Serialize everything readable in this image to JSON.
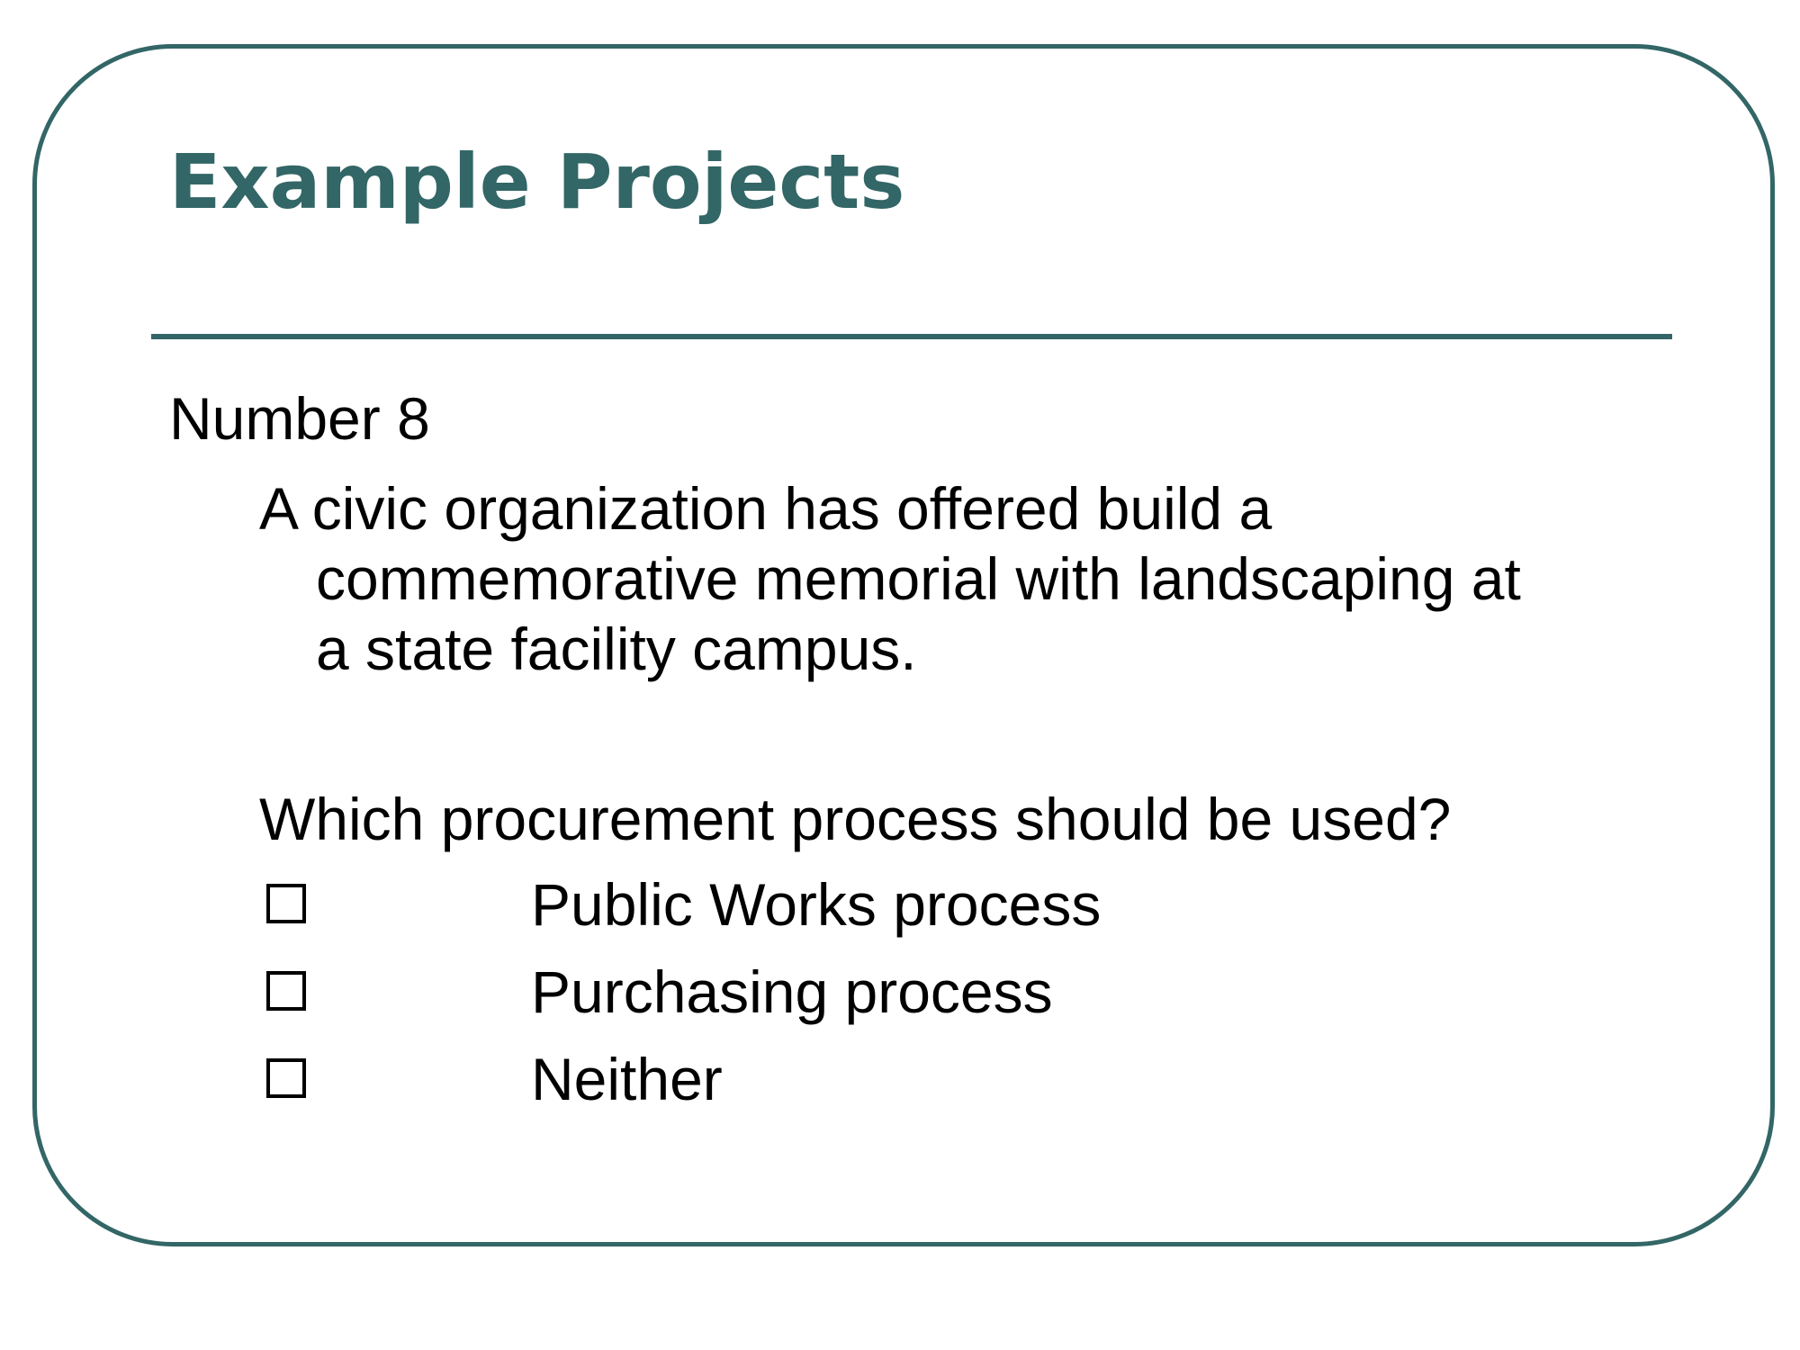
{
  "slide": {
    "title": "Example Projects",
    "heading": "Number 8",
    "paragraph_lines": [
      "A civic organization has offered build a",
      "commemorative memorial with landscaping at",
      "a state facility campus."
    ],
    "question": "Which procurement process should be used?",
    "options": [
      {
        "label": "Public Works process",
        "checked": false
      },
      {
        "label": "Purchasing process",
        "checked": false
      },
      {
        "label": "Neither",
        "checked": false
      }
    ]
  },
  "colors": {
    "accent": "#336666",
    "text": "#000000",
    "background": "#ffffff"
  }
}
